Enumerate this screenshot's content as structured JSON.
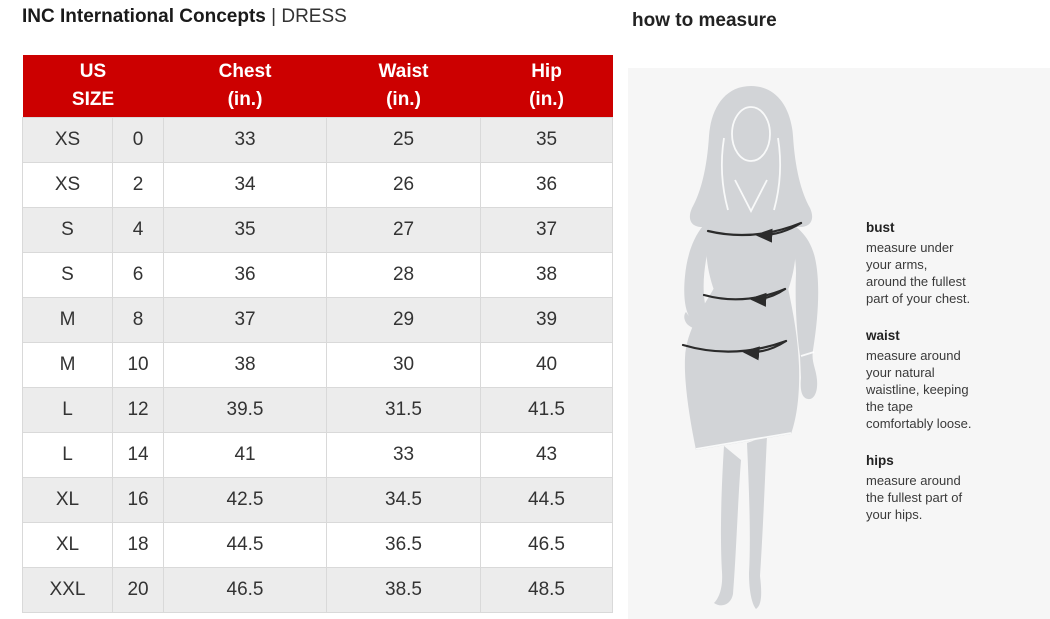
{
  "page": {
    "title_brand": "INC International Concepts",
    "title_separator": "|",
    "title_product": "DRESS"
  },
  "size_chart": {
    "headers": [
      {
        "label": "US\nSIZE",
        "colspan": 2
      },
      {
        "label": "Chest\n(in.)",
        "colspan": 1
      },
      {
        "label": "Waist\n(in.)",
        "colspan": 1
      },
      {
        "label": "Hip\n(in.)",
        "colspan": 1
      }
    ],
    "columns": [
      "size_letter",
      "size_number",
      "chest_in",
      "waist_in",
      "hip_in"
    ],
    "rows": [
      [
        "XS",
        "0",
        "33",
        "25",
        "35"
      ],
      [
        "XS",
        "2",
        "34",
        "26",
        "36"
      ],
      [
        "S",
        "4",
        "35",
        "27",
        "37"
      ],
      [
        "S",
        "6",
        "36",
        "28",
        "38"
      ],
      [
        "M",
        "8",
        "37",
        "29",
        "39"
      ],
      [
        "M",
        "10",
        "38",
        "30",
        "40"
      ],
      [
        "L",
        "12",
        "39.5",
        "31.5",
        "41.5"
      ],
      [
        "L",
        "14",
        "41",
        "33",
        "43"
      ],
      [
        "XL",
        "16",
        "42.5",
        "34.5",
        "44.5"
      ],
      [
        "XL",
        "18",
        "44.5",
        "36.5",
        "46.5"
      ],
      [
        "XXL",
        "20",
        "46.5",
        "38.5",
        "48.5"
      ]
    ]
  },
  "how_to_measure": {
    "heading": "how to measure",
    "figure_icon": "woman-silhouette-with-measurement-arrows",
    "sections": [
      {
        "label": "bust",
        "text": "measure under\nyour arms,\naround the fullest\npart of your chest."
      },
      {
        "label": "waist",
        "text": "measure around\nyour natural\nwaistline, keeping\nthe tape\ncomfortably loose."
      },
      {
        "label": "hips",
        "text": "measure around\nthe fullest part of\nyour hips."
      }
    ]
  },
  "colors": {
    "header_red": "#cc0000",
    "row_alt_gray": "#ececec",
    "cell_border": "#d9d9d9",
    "body_text": "#333333",
    "panel_bg": "#f6f6f6",
    "silhouette_gray": "#d2d4d7",
    "arrow_dark": "#2b2b2b"
  }
}
